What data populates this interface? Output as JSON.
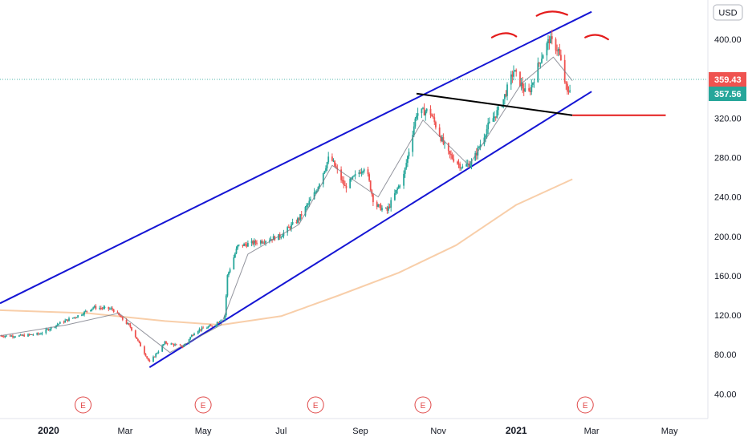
{
  "currency_label": "USD",
  "chart_data": {
    "type": "candlestick",
    "title": "",
    "xlabel": "",
    "ylabel": "",
    "ylim": [
      15,
      440
    ],
    "xlim": [
      "2019-11-24",
      "2021-05-31"
    ],
    "grid": false,
    "y_ticks": [
      "40.00",
      "80.00",
      "120.00",
      "160.00",
      "200.00",
      "240.00",
      "280.00",
      "320.00",
      "400.00"
    ],
    "x_ticks": [
      {
        "label": "2020",
        "date": "2020-01-01",
        "bold": true
      },
      {
        "label": "Mar",
        "date": "2020-03-01"
      },
      {
        "label": "May",
        "date": "2020-05-01"
      },
      {
        "label": "Jul",
        "date": "2020-07-01"
      },
      {
        "label": "Sep",
        "date": "2020-09-01"
      },
      {
        "label": "Nov",
        "date": "2020-11-01"
      },
      {
        "label": "2021",
        "date": "2021-01-01",
        "bold": true
      },
      {
        "label": "Mar",
        "date": "2021-03-01"
      },
      {
        "label": "May",
        "date": "2021-05-01"
      }
    ],
    "price_labels": [
      {
        "text": "359.43",
        "value": 359.43,
        "color": "#ef5350"
      },
      {
        "text": "357.56",
        "value": 357.56,
        "color": "#26a69a"
      }
    ],
    "current_price_line": 359.43,
    "close_path": [
      [
        "2019-11-24",
        99
      ],
      [
        "2019-12-10",
        99
      ],
      [
        "2019-12-25",
        101
      ],
      [
        "2020-01-10",
        112
      ],
      [
        "2020-01-25",
        120
      ],
      [
        "2020-02-05",
        128
      ],
      [
        "2020-02-20",
        126
      ],
      [
        "2020-03-05",
        108
      ],
      [
        "2020-03-20",
        72
      ],
      [
        "2020-04-01",
        92
      ],
      [
        "2020-04-15",
        88
      ],
      [
        "2020-04-25",
        104
      ],
      [
        "2020-05-10",
        110
      ],
      [
        "2020-05-18",
        120
      ],
      [
        "2020-05-20",
        160
      ],
      [
        "2020-05-28",
        190
      ],
      [
        "2020-06-15",
        195
      ],
      [
        "2020-06-30",
        200
      ],
      [
        "2020-07-15",
        218
      ],
      [
        "2020-07-28",
        245
      ],
      [
        "2020-08-08",
        282
      ],
      [
        "2020-08-20",
        250
      ],
      [
        "2020-09-05",
        272
      ],
      [
        "2020-09-12",
        232
      ],
      [
        "2020-09-22",
        226
      ],
      [
        "2020-10-05",
        262
      ],
      [
        "2020-10-15",
        325
      ],
      [
        "2020-10-25",
        328
      ],
      [
        "2020-11-08",
        285
      ],
      [
        "2020-11-20",
        270
      ],
      [
        "2020-11-28",
        276
      ],
      [
        "2020-12-10",
        312
      ],
      [
        "2020-12-20",
        332
      ],
      [
        "2020-12-30",
        368
      ],
      [
        "2021-01-10",
        342
      ],
      [
        "2021-01-20",
        380
      ],
      [
        "2021-01-27",
        400
      ],
      [
        "2021-02-03",
        389
      ],
      [
        "2021-02-10",
        345
      ],
      [
        "2021-02-14",
        358
      ]
    ],
    "series": [
      {
        "kind": "ma-fast",
        "color": "#787b86",
        "points": [
          [
            "2019-11-24",
            99
          ],
          [
            "2020-01-15",
            110
          ],
          [
            "2020-02-25",
            122
          ],
          [
            "2020-04-05",
            82
          ],
          [
            "2020-05-15",
            110
          ],
          [
            "2020-06-05",
            182
          ],
          [
            "2020-07-15",
            212
          ],
          [
            "2020-08-10",
            272
          ],
          [
            "2020-09-15",
            240
          ],
          [
            "2020-10-20",
            318
          ],
          [
            "2020-11-25",
            272
          ],
          [
            "2021-01-05",
            355
          ],
          [
            "2021-01-30",
            382
          ],
          [
            "2021-02-14",
            358
          ]
        ]
      },
      {
        "kind": "ma-slow",
        "color": "#f7c9a0",
        "points": [
          [
            "2019-11-24",
            125
          ],
          [
            "2020-02-01",
            122
          ],
          [
            "2020-04-01",
            114
          ],
          [
            "2020-05-15",
            110
          ],
          [
            "2020-07-01",
            119
          ],
          [
            "2020-08-15",
            140
          ],
          [
            "2020-10-01",
            163
          ],
          [
            "2020-11-15",
            191
          ],
          [
            "2021-01-01",
            232
          ],
          [
            "2021-02-14",
            258
          ]
        ]
      }
    ],
    "drawings": [
      {
        "kind": "channel-upper",
        "color": "#1515d4",
        "points": [
          [
            "2019-11-24",
            132
          ],
          [
            "2021-03-01",
            428
          ]
        ]
      },
      {
        "kind": "channel-lower",
        "color": "#1515d4",
        "points": [
          [
            "2020-03-20",
            67
          ],
          [
            "2021-03-01",
            347
          ]
        ]
      },
      {
        "kind": "neckline",
        "color": "#000000",
        "points": [
          [
            "2020-10-15",
            345
          ],
          [
            "2021-02-14",
            323
          ]
        ]
      },
      {
        "kind": "horizontal",
        "color": "#e41c1c",
        "points": [
          [
            "2021-02-14",
            323
          ],
          [
            "2021-04-28",
            323
          ]
        ]
      },
      {
        "kind": "arc",
        "color": "#e41c1c",
        "points": [
          [
            "2020-12-13",
            402
          ],
          [
            "2020-12-24",
            406
          ],
          [
            "2021-01-01",
            403
          ]
        ]
      },
      {
        "kind": "arc",
        "color": "#e41c1c",
        "points": [
          [
            "2021-01-17",
            424
          ],
          [
            "2021-01-28",
            428
          ],
          [
            "2021-02-10",
            425
          ]
        ]
      },
      {
        "kind": "arc",
        "color": "#e41c1c",
        "points": [
          [
            "2021-02-24",
            402
          ],
          [
            "2021-03-05",
            404
          ],
          [
            "2021-03-14",
            400
          ]
        ]
      }
    ],
    "events": [
      {
        "label": "E",
        "date": "2020-01-28"
      },
      {
        "label": "E",
        "date": "2020-05-01"
      },
      {
        "label": "E",
        "date": "2020-07-28"
      },
      {
        "label": "E",
        "date": "2020-10-20"
      },
      {
        "label": "E",
        "date": "2021-02-24"
      }
    ]
  }
}
